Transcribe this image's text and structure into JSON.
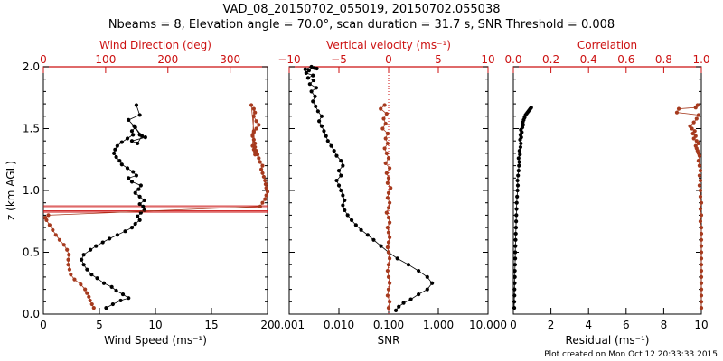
{
  "header": {
    "title_line1": "VAD_08_20150702_055019, 20150702.055038",
    "title_line2": "Nbeams = 8, Elevation angle = 70.0°, scan duration = 31.7 s, SNR Threshold = 0.008"
  },
  "credit": "Plot created on Mon Oct 12 20:33:33 2015",
  "colors": {
    "black": "#000000",
    "red": "#cc1111",
    "brown": "#a63a1e"
  },
  "chart_data": [
    {
      "type": "scatter",
      "panel": "wind",
      "ylabel": "z (km AGL)",
      "ylim": [
        0,
        2.0
      ],
      "y_ticks": [
        0.0,
        0.5,
        1.0,
        1.5,
        2.0
      ],
      "y_ticklabels": [
        "0.0",
        "0.5",
        "1.0",
        "1.5",
        "2.0"
      ],
      "bottom_axis": {
        "label": "Wind Speed (ms⁻¹)",
        "range": [
          0,
          20
        ],
        "ticks": [
          0,
          5,
          10,
          15,
          20
        ],
        "ticklabels": [
          "0",
          "5",
          "10",
          "15",
          "20"
        ]
      },
      "top_axis": {
        "label": "Wind Direction (deg)",
        "range": [
          0,
          360
        ],
        "ticks": [
          0,
          100,
          200,
          300
        ],
        "ticklabels": [
          "0",
          "100",
          "200",
          "300"
        ]
      },
      "series": [
        {
          "axis": "bottom",
          "x": [
            5.6,
            6.2,
            6.9,
            7.6,
            7.1,
            6.5,
            6.1,
            5.4,
            4.8,
            4.3,
            3.9,
            3.6,
            3.4,
            3.6,
            4.2,
            4.7,
            5.3,
            5.9,
            6.6,
            7.3,
            7.9,
            8.2,
            8.6,
            8.4,
            8.7,
            9.0,
            8.9,
            8.6,
            9.0,
            8.6,
            8.2,
            8.5,
            8.7,
            7.9,
            7.6,
            8.3,
            8.0,
            7.5,
            7.0,
            6.8,
            6.5,
            6.3,
            6.4,
            6.6,
            7.0,
            7.5,
            8.0,
            7.9,
            8.2,
            8.6,
            9.1,
            7.9,
            8.4,
            8.8,
            8.1,
            7.6,
            8.6,
            8.3
          ],
          "y": [
            0.05,
            0.08,
            0.11,
            0.13,
            0.16,
            0.19,
            0.22,
            0.25,
            0.29,
            0.32,
            0.36,
            0.4,
            0.44,
            0.48,
            0.52,
            0.55,
            0.58,
            0.61,
            0.64,
            0.67,
            0.7,
            0.73,
            0.76,
            0.79,
            0.82,
            0.84,
            0.87,
            0.89,
            0.92,
            0.95,
            0.98,
            1.01,
            1.04,
            1.07,
            1.1,
            1.12,
            1.15,
            1.18,
            1.21,
            1.24,
            1.27,
            1.3,
            1.33,
            1.36,
            1.39,
            1.42,
            1.45,
            1.48,
            1.51,
            1.45,
            1.43,
            1.4,
            1.38,
            1.44,
            1.52,
            1.57,
            1.61,
            1.69
          ]
        },
        {
          "axis": "top",
          "x": [
            81,
            78,
            75,
            73,
            70,
            67,
            60,
            50,
            44,
            42,
            40,
            40,
            41,
            38,
            33,
            26,
            20,
            15,
            10,
            5,
            3,
            8,
            348,
            352,
            356,
            358,
            360,
            358,
            357,
            356,
            354,
            352,
            350,
            352,
            348,
            346,
            344,
            342,
            340,
            340,
            338,
            336,
            338,
            342,
            346,
            342,
            338,
            340,
            338,
            336,
            338,
            340,
            336,
            340,
            338,
            334
          ],
          "y": [
            0.05,
            0.08,
            0.11,
            0.14,
            0.17,
            0.2,
            0.24,
            0.28,
            0.32,
            0.36,
            0.4,
            0.44,
            0.48,
            0.52,
            0.56,
            0.6,
            0.64,
            0.68,
            0.72,
            0.76,
            0.78,
            0.8,
            0.87,
            0.9,
            0.93,
            0.96,
            0.99,
            1.02,
            1.05,
            1.08,
            1.11,
            1.14,
            1.17,
            1.2,
            1.23,
            1.26,
            1.29,
            1.32,
            1.35,
            1.38,
            1.41,
            1.44,
            1.47,
            1.5,
            1.53,
            1.56,
            1.6,
            1.63,
            1.66,
            1.36,
            1.33,
            1.31,
            1.45,
            1.29,
            1.48,
            1.69
          ]
        }
      ],
      "reference_lines_y": [
        0.825,
        0.835,
        0.86,
        0.875
      ]
    },
    {
      "type": "scatter",
      "panel": "vertical",
      "ylim": [
        0,
        2.0
      ],
      "bottom_axis": {
        "label": "SNR",
        "scale": "log",
        "range": [
          0.001,
          10.0
        ],
        "ticks": [
          0.001,
          0.01,
          0.1,
          1.0,
          10.0
        ],
        "ticklabels": [
          "0.001",
          "0.010",
          "0.100",
          "1.000",
          "10.000"
        ]
      },
      "top_axis": {
        "label": "Vertical velocity (ms⁻¹)",
        "range": [
          -10,
          10
        ],
        "ticks": [
          -10,
          -5,
          0,
          5,
          10
        ],
        "ticklabels": [
          "−10",
          "−5",
          "0",
          "5",
          "10"
        ]
      },
      "series": [
        {
          "axis": "bottom",
          "x": [
            0.14,
            0.16,
            0.2,
            0.28,
            0.4,
            0.6,
            0.75,
            0.6,
            0.4,
            0.25,
            0.15,
            0.1,
            0.07,
            0.05,
            0.038,
            0.028,
            0.022,
            0.018,
            0.015,
            0.013,
            0.012,
            0.013,
            0.012,
            0.011,
            0.01,
            0.009,
            0.011,
            0.01,
            0.012,
            0.011,
            0.009,
            0.008,
            0.007,
            0.006,
            0.0055,
            0.005,
            0.0045,
            0.004,
            0.0045,
            0.0038,
            0.0034,
            0.003,
            0.0033,
            0.0028,
            0.0035,
            0.0026,
            0.0031,
            0.0024,
            0.003,
            0.0022,
            0.0025,
            0.0021,
            0.0028,
            0.0032,
            0.0036
          ],
          "y": [
            0.03,
            0.06,
            0.09,
            0.12,
            0.16,
            0.2,
            0.25,
            0.3,
            0.35,
            0.4,
            0.45,
            0.5,
            0.55,
            0.6,
            0.64,
            0.68,
            0.72,
            0.76,
            0.8,
            0.84,
            0.88,
            0.92,
            0.96,
            1.0,
            1.04,
            1.08,
            1.12,
            1.16,
            1.2,
            1.24,
            1.28,
            1.32,
            1.36,
            1.4,
            1.44,
            1.48,
            1.52,
            1.56,
            1.6,
            1.64,
            1.68,
            1.72,
            1.76,
            1.8,
            1.83,
            1.86,
            1.89,
            1.91,
            1.93,
            1.95,
            1.97,
            1.98,
            2.0,
            1.99,
            1.985
          ]
        },
        {
          "axis": "top",
          "x": [
            0.0,
            0.1,
            -0.1,
            0.0,
            0.1,
            0.0,
            -0.1,
            0.0,
            0.1,
            0.0,
            -0.1,
            0.0,
            0.1,
            0.0,
            -0.1,
            0.1,
            0.0,
            -0.2,
            0.0,
            0.1,
            -0.1,
            0.0,
            0.2,
            -0.1,
            0.0,
            -0.2,
            0.1,
            -0.3,
            0.0,
            -0.2,
            -0.4,
            -0.1,
            -0.3,
            -0.1,
            -0.6,
            -0.3,
            -0.5,
            -0.2,
            -0.8,
            -0.4
          ],
          "y": [
            0.05,
            0.1,
            0.15,
            0.2,
            0.25,
            0.3,
            0.35,
            0.4,
            0.45,
            0.5,
            0.54,
            0.58,
            0.62,
            0.66,
            0.7,
            0.74,
            0.78,
            0.82,
            0.86,
            0.9,
            0.94,
            0.98,
            1.02,
            1.06,
            1.1,
            1.14,
            1.18,
            1.22,
            1.26,
            1.3,
            1.34,
            1.38,
            1.42,
            1.46,
            1.5,
            1.54,
            1.58,
            1.62,
            1.66,
            1.69
          ]
        }
      ],
      "reference_line_x": 0
    },
    {
      "type": "scatter",
      "panel": "correlation",
      "ylim": [
        0,
        2.0
      ],
      "bottom_axis": {
        "label": "Residual (ms⁻¹)",
        "range": [
          0,
          10
        ],
        "ticks": [
          0,
          2,
          4,
          6,
          8,
          10
        ],
        "ticklabels": [
          "0",
          "2",
          "4",
          "6",
          "8",
          "10"
        ]
      },
      "top_axis": {
        "label": "Correlation",
        "range": [
          0.0,
          1.0
        ],
        "ticks": [
          0.0,
          0.2,
          0.4,
          0.6,
          0.8,
          1.0
        ],
        "ticklabels": [
          "0.0",
          "0.2",
          "0.4",
          "0.6",
          "0.8",
          "1.0"
        ]
      },
      "series": [
        {
          "axis": "bottom",
          "x": [
            0.05,
            0.05,
            0.06,
            0.06,
            0.07,
            0.08,
            0.08,
            0.09,
            0.1,
            0.1,
            0.11,
            0.12,
            0.13,
            0.14,
            0.15,
            0.16,
            0.17,
            0.18,
            0.2,
            0.22,
            0.24,
            0.22,
            0.25,
            0.28,
            0.3,
            0.32,
            0.28,
            0.35,
            0.33,
            0.38,
            0.4,
            0.36,
            0.42,
            0.38,
            0.45,
            0.4,
            0.48,
            0.52,
            0.5,
            0.55,
            0.6,
            0.65,
            0.7,
            0.75,
            0.8,
            0.85,
            0.9,
            0.95
          ],
          "y": [
            0.05,
            0.1,
            0.15,
            0.2,
            0.25,
            0.3,
            0.35,
            0.4,
            0.45,
            0.5,
            0.55,
            0.6,
            0.65,
            0.7,
            0.75,
            0.8,
            0.85,
            0.9,
            0.95,
            1.0,
            1.04,
            1.08,
            1.12,
            1.16,
            1.2,
            1.23,
            1.26,
            1.29,
            1.32,
            1.35,
            1.38,
            1.41,
            1.43,
            1.45,
            1.47,
            1.49,
            1.51,
            1.53,
            1.55,
            1.57,
            1.59,
            1.61,
            1.62,
            1.63,
            1.64,
            1.65,
            1.66,
            1.67
          ]
        },
        {
          "axis": "top",
          "x": [
            1.0,
            1.0,
            1.0,
            1.0,
            1.0,
            1.0,
            1.0,
            1.0,
            1.0,
            1.0,
            1.0,
            1.0,
            1.0,
            1.0,
            0.995,
            1.0,
            0.995,
            1.0,
            0.995,
            0.995,
            0.99,
            0.995,
            0.99,
            0.995,
            0.99,
            0.985,
            0.99,
            0.985,
            0.98,
            0.975,
            0.97,
            0.985,
            0.975,
            0.96,
            0.97,
            0.955,
            0.965,
            0.95,
            0.94,
            0.96,
            0.975,
            0.985,
            0.87,
            0.88,
            0.97,
            0.98
          ],
          "y": [
            0.05,
            0.1,
            0.15,
            0.2,
            0.25,
            0.3,
            0.35,
            0.4,
            0.45,
            0.5,
            0.55,
            0.6,
            0.65,
            0.7,
            0.75,
            0.8,
            0.85,
            0.9,
            0.95,
            1.0,
            1.04,
            1.08,
            1.12,
            1.16,
            1.2,
            1.24,
            1.28,
            1.3,
            1.32,
            1.34,
            1.36,
            1.38,
            1.4,
            1.42,
            1.44,
            1.46,
            1.48,
            1.5,
            1.52,
            1.55,
            1.58,
            1.61,
            1.63,
            1.66,
            1.67,
            1.69
          ]
        }
      ]
    }
  ]
}
